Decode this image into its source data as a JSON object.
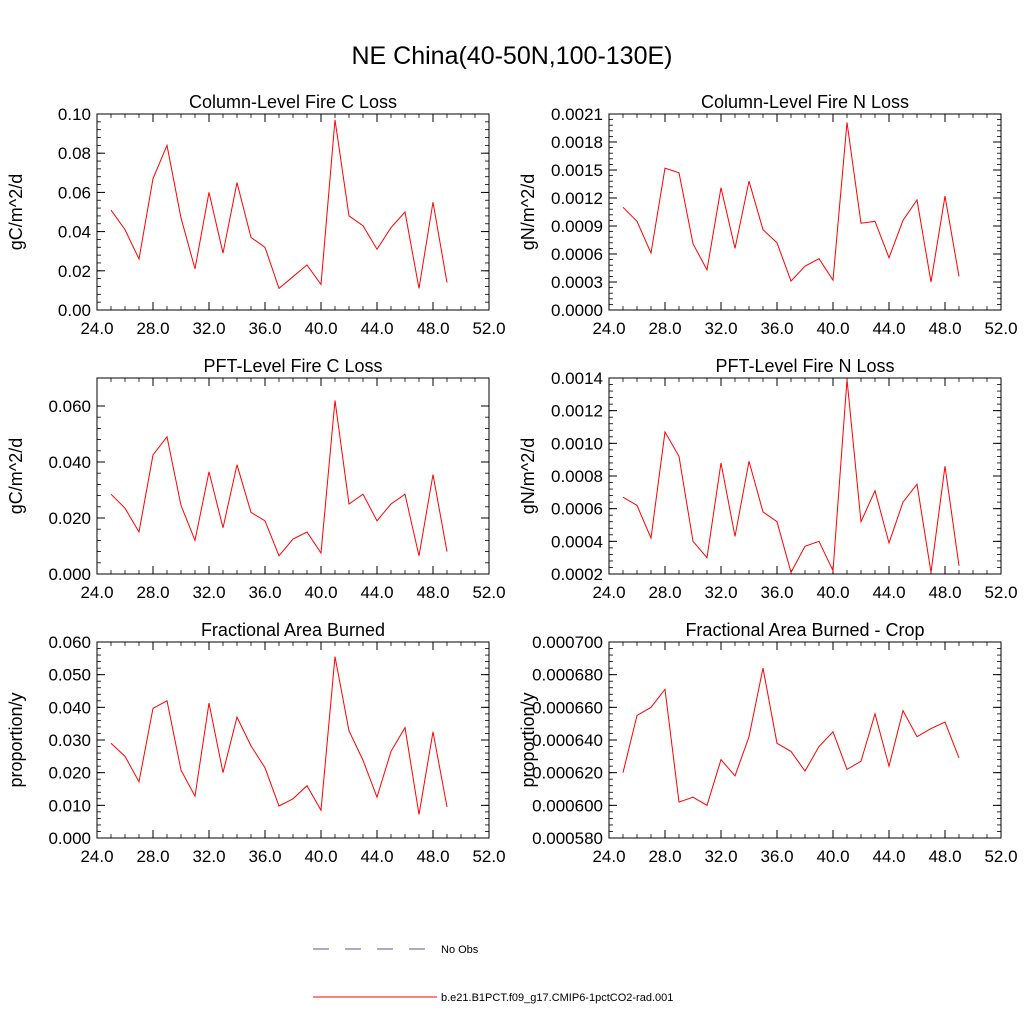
{
  "figure": {
    "title": "NE China(40-50N,100-130E)"
  },
  "legend": {
    "items": [
      {
        "label": "No Obs",
        "color": "#5a5a96",
        "dash": true
      },
      {
        "label": "b.e21.B1PCT.f09_g17.CMIP6-1pctCO2-rad.001",
        "color": "#ff0000",
        "dash": false
      }
    ]
  },
  "chart_data": [
    {
      "type": "line",
      "title": "Column-Level Fire C Loss",
      "ylabel": "gC/m^2/d",
      "xlim": [
        24,
        52
      ],
      "ylim": [
        0,
        0.1
      ],
      "xticks": [
        24,
        28,
        32,
        36,
        40,
        44,
        48,
        52
      ],
      "xtick_labels": [
        "24.0",
        "28.0",
        "32.0",
        "36.0",
        "40.0",
        "44.0",
        "48.0",
        "52.0"
      ],
      "yticks": [
        0,
        0.02,
        0.04,
        0.06,
        0.08,
        0.1
      ],
      "ytick_labels": [
        "0.00",
        "0.02",
        "0.04",
        "0.06",
        "0.08",
        "0.10"
      ],
      "x": [
        25,
        26,
        27,
        28,
        29,
        30,
        31,
        32,
        33,
        34,
        35,
        36,
        37,
        38,
        39,
        40,
        41,
        42,
        43,
        44,
        45,
        46,
        47,
        48,
        49
      ],
      "series": [
        {
          "name": "b.e21.B1PCT.f09_g17.CMIP6-1pctCO2-rad.001",
          "color": "#ff0000",
          "values": [
            0.051,
            0.041,
            0.026,
            0.067,
            0.084,
            0.047,
            0.021,
            0.06,
            0.029,
            0.065,
            0.037,
            0.032,
            0.011,
            0.017,
            0.023,
            0.013,
            0.097,
            0.048,
            0.043,
            0.031,
            0.042,
            0.05,
            0.011,
            0.055,
            0.014
          ]
        }
      ]
    },
    {
      "type": "line",
      "title": "Column-Level Fire N Loss",
      "ylabel": "gN/m^2/d",
      "xlim": [
        24,
        52
      ],
      "ylim": [
        0,
        0.0021
      ],
      "xticks": [
        24,
        28,
        32,
        36,
        40,
        44,
        48,
        52
      ],
      "xtick_labels": [
        "24.0",
        "28.0",
        "32.0",
        "36.0",
        "40.0",
        "44.0",
        "48.0",
        "52.0"
      ],
      "yticks": [
        0,
        0.0003,
        0.0006,
        0.0009,
        0.0012,
        0.0015,
        0.0018,
        0.0021
      ],
      "ytick_labels": [
        "0.0000",
        "0.0003",
        "0.0006",
        "0.0009",
        "0.0012",
        "0.0015",
        "0.0018",
        "0.0021"
      ],
      "x": [
        25,
        26,
        27,
        28,
        29,
        30,
        31,
        32,
        33,
        34,
        35,
        36,
        37,
        38,
        39,
        40,
        41,
        42,
        43,
        44,
        45,
        46,
        47,
        48,
        49
      ],
      "series": [
        {
          "name": "b.e21.B1PCT.f09_g17.CMIP6-1pctCO2-rad.001",
          "color": "#ff0000",
          "values": [
            0.0011,
            0.00095,
            0.00061,
            0.00152,
            0.00147,
            0.00071,
            0.00043,
            0.00131,
            0.00066,
            0.00138,
            0.00086,
            0.00072,
            0.00031,
            0.00047,
            0.00055,
            0.00032,
            0.00201,
            0.00093,
            0.00095,
            0.00056,
            0.00096,
            0.00118,
            0.0003,
            0.00122,
            0.00036
          ]
        }
      ]
    },
    {
      "type": "line",
      "title": "PFT-Level Fire C Loss",
      "ylabel": "gC/m^2/d",
      "xlim": [
        24,
        52
      ],
      "ylim": [
        0,
        0.07
      ],
      "xticks": [
        24,
        28,
        32,
        36,
        40,
        44,
        48,
        52
      ],
      "xtick_labels": [
        "24.0",
        "28.0",
        "32.0",
        "36.0",
        "40.0",
        "44.0",
        "48.0",
        "52.0"
      ],
      "yticks": [
        0,
        0.02,
        0.04,
        0.06
      ],
      "ytick_labels": [
        "0.000",
        "0.020",
        "0.040",
        "0.060"
      ],
      "x": [
        25,
        26,
        27,
        28,
        29,
        30,
        31,
        32,
        33,
        34,
        35,
        36,
        37,
        38,
        39,
        40,
        41,
        42,
        43,
        44,
        45,
        46,
        47,
        48,
        49
      ],
      "series": [
        {
          "name": "b.e21.B1PCT.f09_g17.CMIP6-1pctCO2-rad.001",
          "color": "#ff0000",
          "values": [
            0.0285,
            0.0235,
            0.015,
            0.0425,
            0.049,
            0.0245,
            0.012,
            0.0365,
            0.0165,
            0.039,
            0.022,
            0.019,
            0.0065,
            0.0125,
            0.015,
            0.0075,
            0.062,
            0.025,
            0.0285,
            0.019,
            0.025,
            0.0285,
            0.0065,
            0.0355,
            0.008
          ]
        }
      ]
    },
    {
      "type": "line",
      "title": "PFT-Level Fire N Loss",
      "ylabel": "gN/m^2/d",
      "xlim": [
        24,
        52
      ],
      "ylim": [
        0.0002,
        0.0014
      ],
      "xticks": [
        24,
        28,
        32,
        36,
        40,
        44,
        48,
        52
      ],
      "xtick_labels": [
        "24.0",
        "28.0",
        "32.0",
        "36.0",
        "40.0",
        "44.0",
        "48.0",
        "52.0"
      ],
      "yticks": [
        0.0002,
        0.0004,
        0.0006,
        0.0008,
        0.001,
        0.0012,
        0.0014
      ],
      "ytick_labels": [
        "0.0002",
        "0.0004",
        "0.0006",
        "0.0008",
        "0.0010",
        "0.0012",
        "0.0014"
      ],
      "x": [
        25,
        26,
        27,
        28,
        29,
        30,
        31,
        32,
        33,
        34,
        35,
        36,
        37,
        38,
        39,
        40,
        41,
        42,
        43,
        44,
        45,
        46,
        47,
        48,
        49
      ],
      "series": [
        {
          "name": "b.e21.B1PCT.f09_g17.CMIP6-1pctCO2-rad.001",
          "color": "#ff0000",
          "values": [
            0.00067,
            0.00062,
            0.00042,
            0.00107,
            0.00092,
            0.0004,
            0.0003,
            0.00088,
            0.00043,
            0.00089,
            0.00058,
            0.00052,
            0.00021,
            0.00037,
            0.0004,
            0.00022,
            0.00139,
            0.00052,
            0.00071,
            0.00039,
            0.00064,
            0.00075,
            0.00021,
            0.00086,
            0.00025
          ]
        }
      ]
    },
    {
      "type": "line",
      "title": "Fractional Area Burned",
      "ylabel": "proportion/y",
      "xlim": [
        24,
        52
      ],
      "ylim": [
        0,
        0.06
      ],
      "xticks": [
        24,
        28,
        32,
        36,
        40,
        44,
        48,
        52
      ],
      "xtick_labels": [
        "24.0",
        "28.0",
        "32.0",
        "36.0",
        "40.0",
        "44.0",
        "48.0",
        "52.0"
      ],
      "yticks": [
        0,
        0.01,
        0.02,
        0.03,
        0.04,
        0.05,
        0.06
      ],
      "ytick_labels": [
        "0.000",
        "0.010",
        "0.020",
        "0.030",
        "0.040",
        "0.050",
        "0.060"
      ],
      "x": [
        25,
        26,
        27,
        28,
        29,
        30,
        31,
        32,
        33,
        34,
        35,
        36,
        37,
        38,
        39,
        40,
        41,
        42,
        43,
        44,
        45,
        46,
        47,
        48,
        49
      ],
      "series": [
        {
          "name": "b.e21.B1PCT.f09_g17.CMIP6-1pctCO2-rad.001",
          "color": "#ff0000",
          "values": [
            0.029,
            0.025,
            0.0172,
            0.0397,
            0.042,
            0.0208,
            0.0128,
            0.0413,
            0.02,
            0.037,
            0.0282,
            0.0215,
            0.0098,
            0.012,
            0.016,
            0.0085,
            0.0555,
            0.0328,
            0.0238,
            0.0125,
            0.0265,
            0.0338,
            0.0072,
            0.0325,
            0.0095
          ]
        }
      ]
    },
    {
      "type": "line",
      "title": "Fractional Area Burned - Crop",
      "ylabel": "proportion/y",
      "xlim": [
        24,
        52
      ],
      "ylim": [
        0.00058,
        0.0007
      ],
      "xticks": [
        24,
        28,
        32,
        36,
        40,
        44,
        48,
        52
      ],
      "xtick_labels": [
        "24.0",
        "28.0",
        "32.0",
        "36.0",
        "40.0",
        "44.0",
        "48.0",
        "52.0"
      ],
      "yticks": [
        0.00058,
        0.0006,
        0.00062,
        0.00064,
        0.00066,
        0.00068,
        0.0007
      ],
      "ytick_labels": [
        "0.000580",
        "0.000600",
        "0.000620",
        "0.000640",
        "0.000660",
        "0.000680",
        "0.000700"
      ],
      "x": [
        25,
        26,
        27,
        28,
        29,
        30,
        31,
        32,
        33,
        34,
        35,
        36,
        37,
        38,
        39,
        40,
        41,
        42,
        43,
        44,
        45,
        46,
        47,
        48,
        49
      ],
      "series": [
        {
          "name": "b.e21.B1PCT.f09_g17.CMIP6-1pctCO2-rad.001",
          "color": "#ff0000",
          "values": [
            0.00062,
            0.000655,
            0.00066,
            0.000671,
            0.000602,
            0.000605,
            0.0006,
            0.000628,
            0.000618,
            0.000642,
            0.000684,
            0.000638,
            0.000633,
            0.000621,
            0.000636,
            0.000645,
            0.000622,
            0.000627,
            0.000656,
            0.000624,
            0.000658,
            0.000642,
            0.000647,
            0.000651,
            0.000629
          ]
        }
      ]
    }
  ]
}
